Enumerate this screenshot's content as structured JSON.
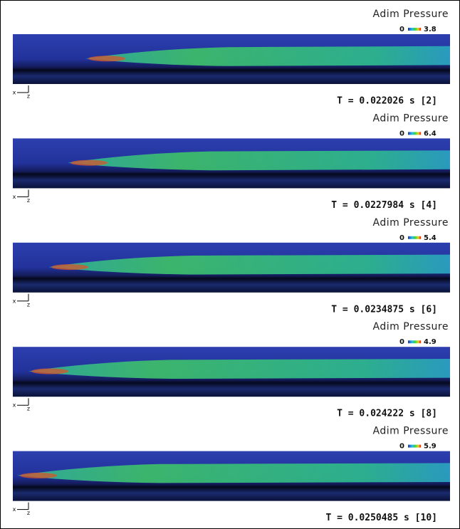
{
  "panels": [
    {
      "legend_title": "Adim Pressure",
      "range_min": "0",
      "range_max": "3.8",
      "axis_h": "x",
      "axis_v": "z",
      "time_label": "T = 0.022026 s [2]"
    },
    {
      "legend_title": "Adim Pressure",
      "range_min": "0",
      "range_max": "6.4",
      "axis_h": "x",
      "axis_v": "z",
      "time_label": "T = 0.0227984 s [4]"
    },
    {
      "legend_title": "Adim Pressure",
      "range_min": "0",
      "range_max": "5.4",
      "axis_h": "x",
      "axis_v": "z",
      "time_label": "T = 0.0234875 s [6]"
    },
    {
      "legend_title": "Adim Pressure",
      "range_min": "0",
      "range_max": "4.9",
      "axis_h": "x",
      "axis_v": "z",
      "time_label": "T = 0.024222 s [8]"
    },
    {
      "legend_title": "Adim Pressure",
      "range_min": "0",
      "range_max": "5.9",
      "axis_h": "x",
      "axis_v": "z",
      "time_label": "T = 0.0250485 s [10]"
    }
  ]
}
